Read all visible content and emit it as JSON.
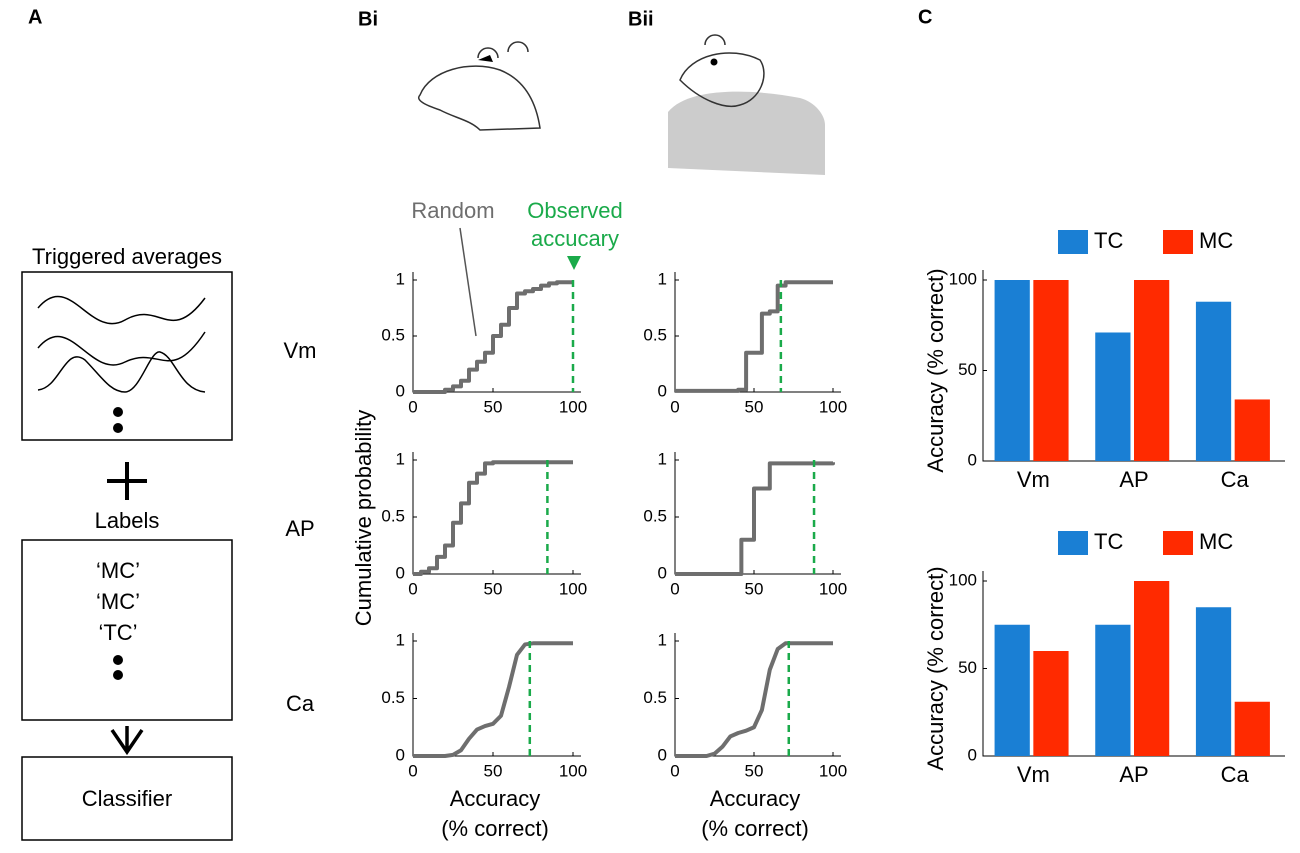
{
  "figure": {
    "panels": [
      "A",
      "Bi",
      "Bii",
      "C"
    ],
    "row_labels": [
      "Vm",
      "AP",
      "Ca"
    ],
    "ylabel": "Cumulative probability",
    "xlabel": [
      "Accuracy",
      "(% correct)"
    ],
    "annotations": {
      "random": "Random",
      "observed": [
        "Observed",
        "accucary"
      ]
    }
  },
  "diagram": {
    "averages_title": "Triggered averages",
    "labels_title": "Labels",
    "labels": [
      "‘MC’",
      "‘MC’",
      "‘TC’"
    ],
    "classifier": "Classifier"
  },
  "chart_data": [
    {
      "type": "line",
      "step": true,
      "x": [
        0,
        20,
        25,
        30,
        35,
        40,
        45,
        50,
        55,
        60,
        65,
        70,
        75,
        80,
        85,
        90,
        95,
        100
      ],
      "series": [
        {
          "color": "#6e6e6e",
          "values": [
            0,
            0.02,
            0.05,
            0.1,
            0.2,
            0.27,
            0.35,
            0.5,
            0.6,
            0.75,
            0.88,
            0.9,
            0.92,
            0.95,
            0.97,
            0.98,
            0.98,
            0.98
          ]
        }
      ],
      "observed": 100,
      "observed_color": "#1aaa4a",
      "xlim": [
        0,
        100
      ],
      "ylim": [
        0,
        1
      ],
      "xticks": [
        0,
        50,
        100
      ],
      "yticks": [
        0,
        0.5,
        1
      ]
    },
    {
      "type": "line",
      "step": true,
      "x": [
        0,
        5,
        10,
        15,
        20,
        25,
        30,
        35,
        40,
        45,
        50,
        55,
        60,
        100
      ],
      "series": [
        {
          "color": "#6e6e6e",
          "values": [
            0,
            0.02,
            0.05,
            0.15,
            0.25,
            0.45,
            0.62,
            0.8,
            0.88,
            0.97,
            0.98,
            0.98,
            0.98,
            0.98
          ]
        }
      ],
      "observed": 84,
      "observed_color": "#1aaa4a",
      "xlim": [
        0,
        100
      ],
      "ylim": [
        0,
        1
      ],
      "xticks": [
        0,
        50,
        100
      ],
      "yticks": [
        0,
        0.5,
        1
      ]
    },
    {
      "type": "line",
      "step": false,
      "x": [
        0,
        20,
        25,
        30,
        35,
        40,
        45,
        50,
        55,
        60,
        65,
        70,
        75,
        100
      ],
      "series": [
        {
          "color": "#6e6e6e",
          "values": [
            0,
            0,
            0.01,
            0.05,
            0.15,
            0.23,
            0.26,
            0.28,
            0.35,
            0.6,
            0.88,
            0.97,
            0.98,
            0.98
          ]
        }
      ],
      "observed": 73,
      "observed_color": "#1aaa4a",
      "xlim": [
        0,
        100
      ],
      "ylim": [
        0,
        1
      ],
      "xticks": [
        0,
        50,
        100
      ],
      "yticks": [
        0,
        0.5,
        1
      ]
    },
    {
      "type": "line",
      "step": true,
      "x": [
        0,
        40,
        45,
        55,
        60,
        65,
        70,
        100
      ],
      "series": [
        {
          "color": "#6e6e6e",
          "values": [
            0.01,
            0.02,
            0.35,
            0.7,
            0.72,
            0.95,
            0.98,
            0.98
          ]
        }
      ],
      "observed": 67,
      "observed_color": "#1aaa4a",
      "xlim": [
        0,
        100
      ],
      "ylim": [
        0,
        1
      ],
      "xticks": [
        0,
        50,
        100
      ],
      "yticks": [
        0,
        0.5,
        1
      ]
    },
    {
      "type": "line",
      "step": true,
      "x": [
        0,
        42,
        50,
        60,
        100
      ],
      "series": [
        {
          "color": "#6e6e6e",
          "values": [
            0,
            0.3,
            0.75,
            0.97,
            0.98
          ]
        }
      ],
      "observed": 88,
      "observed_color": "#1aaa4a",
      "xlim": [
        0,
        100
      ],
      "ylim": [
        0,
        1
      ],
      "xticks": [
        0,
        50,
        100
      ],
      "yticks": [
        0,
        0.5,
        1
      ]
    },
    {
      "type": "line",
      "step": false,
      "x": [
        0,
        20,
        25,
        30,
        35,
        40,
        45,
        50,
        55,
        60,
        65,
        70,
        75,
        100
      ],
      "series": [
        {
          "color": "#6e6e6e",
          "values": [
            0,
            0,
            0.02,
            0.08,
            0.17,
            0.2,
            0.22,
            0.25,
            0.4,
            0.75,
            0.93,
            0.98,
            0.98,
            0.98
          ]
        }
      ],
      "observed": 72,
      "observed_color": "#1aaa4a",
      "xlim": [
        0,
        100
      ],
      "ylim": [
        0,
        1
      ],
      "xticks": [
        0,
        50,
        100
      ],
      "yticks": [
        0,
        0.5,
        1
      ]
    },
    {
      "type": "bar",
      "ylabel": "Accuracy  (% correct)",
      "categories": [
        "Vm",
        "AP",
        "Ca"
      ],
      "series": [
        {
          "name": "TC",
          "color": "#1a7fd4",
          "values": [
            100,
            71,
            88
          ]
        },
        {
          "name": "MC",
          "color": "#ff2a00",
          "values": [
            100,
            100,
            34
          ]
        }
      ],
      "ylim": [
        0,
        100
      ],
      "yticks": [
        0,
        50,
        100
      ]
    },
    {
      "type": "bar",
      "ylabel": "Accuracy (% correct)",
      "categories": [
        "Vm",
        "AP",
        "Ca"
      ],
      "series": [
        {
          "name": "TC",
          "color": "#1a7fd4",
          "values": [
            75,
            75,
            85
          ]
        },
        {
          "name": "MC",
          "color": "#ff2a00",
          "values": [
            60,
            100,
            31
          ]
        }
      ],
      "ylim": [
        0,
        100
      ],
      "yticks": [
        0,
        50,
        100
      ]
    }
  ]
}
